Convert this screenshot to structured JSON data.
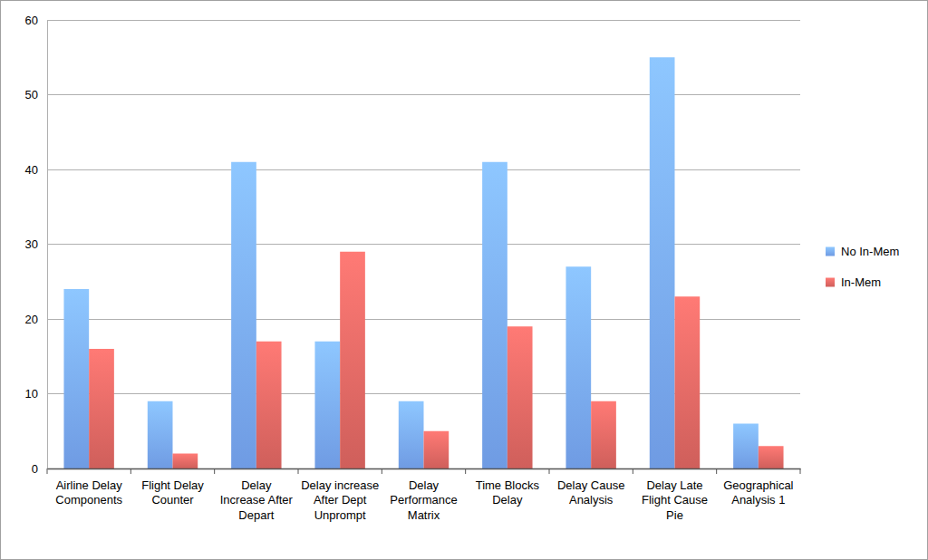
{
  "chart_data": {
    "type": "bar",
    "categories": [
      "Airline Delay Components",
      "Flight Delay Counter",
      "Delay Increase After Depart",
      "Delay increase After Dept Unprompt",
      "Delay Performance Matrix",
      "Time Blocks Delay",
      "Delay Cause Analysis",
      "Delay Late Flight Cause Pie",
      "Geographical Analysis 1"
    ],
    "series": [
      {
        "name": "No In-Mem",
        "color": "#6f9be3",
        "values": [
          24,
          9,
          41,
          17,
          9,
          41,
          27,
          55,
          6
        ]
      },
      {
        "name": "In-Mem",
        "color": "#cf5f5b",
        "values": [
          16,
          2,
          17,
          29,
          5,
          19,
          9,
          23,
          3
        ]
      }
    ],
    "ylim": [
      0,
      60
    ],
    "yticks": [
      0,
      10,
      20,
      30,
      40,
      50,
      60
    ],
    "grid": true,
    "legend": "right"
  }
}
